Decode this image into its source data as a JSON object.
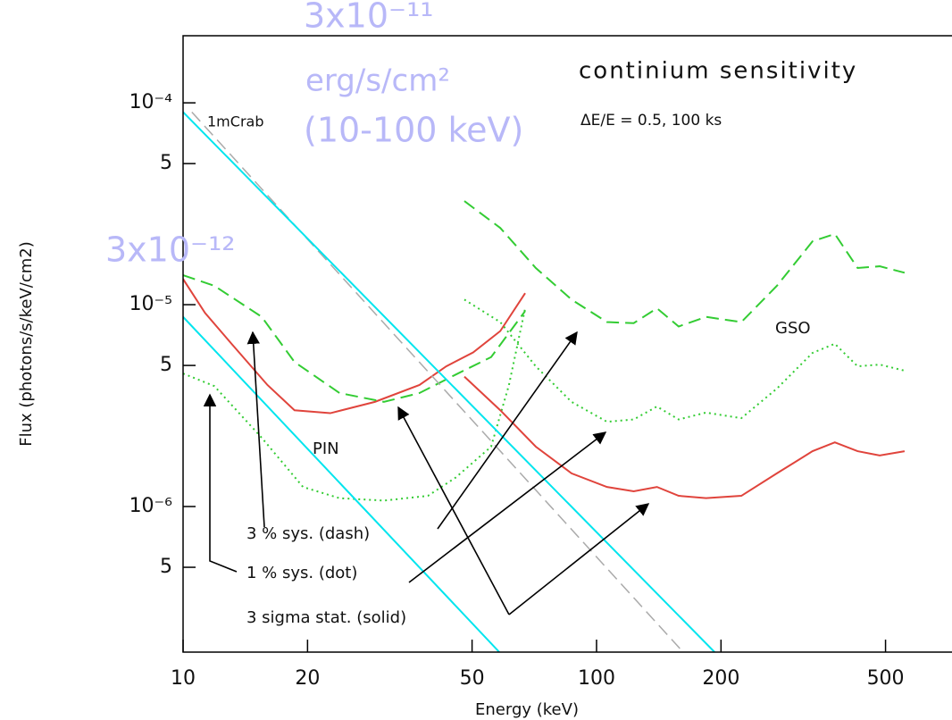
{
  "chart_data": {
    "type": "line",
    "title": "continium sensitivity",
    "subtitle": "ΔE/E = 0.5, 100 ks",
    "xlabel": "Energy (keV)",
    "ylabel": "Flux (photons/s/keV/cm2)",
    "log_x": true,
    "log_y": true,
    "xlim": [
      10,
      724
    ],
    "ylim": [
      1.9e-07,
      0.000215
    ],
    "xticks": [
      10,
      20,
      50,
      100,
      200,
      500
    ],
    "yticks": [
      {
        "value": 0.0001,
        "label": "10⁻⁴"
      },
      {
        "value": 5e-05,
        "label": "5"
      },
      {
        "value": 1e-05,
        "label": "10⁻⁵"
      },
      {
        "value": 5e-06,
        "label": "5"
      },
      {
        "value": 1e-06,
        "label": "10⁻⁶"
      },
      {
        "value": 5e-07,
        "label": "5"
      }
    ],
    "series": [
      {
        "color": "#e0443c",
        "style": "solid",
        "x": [
          10,
          11.3,
          13.1,
          16.0,
          18.6,
          22.7,
          29.1,
          37.3,
          43.3,
          50.3,
          58.5,
          67.2
        ],
        "values": [
          1.34e-05,
          9.1e-06,
          6.4e-06,
          4e-06,
          3e-06,
          2.9e-06,
          3.3e-06,
          4e-06,
          4.95e-06,
          5.8e-06,
          7.4e-06,
          1.14e-05
        ]
      },
      {
        "color": "#33cc33",
        "style": "dashed",
        "x": [
          10,
          11.9,
          15.5,
          18.6,
          23.9,
          30.6,
          37.3,
          45.6,
          55.6,
          67.2
        ],
        "values": [
          1.4e-05,
          1.24e-05,
          8.7e-06,
          5.2e-06,
          3.65e-06,
          3.3e-06,
          3.65e-06,
          4.5e-06,
          5.5e-06,
          9.3e-06
        ]
      },
      {
        "color": "#33cc33",
        "style": "dotted",
        "x": [
          10,
          11.9,
          15.5,
          19.5,
          23.9,
          30.6,
          39.1,
          45.6,
          55.6,
          61.4,
          67.2
        ],
        "values": [
          4.56e-06,
          3.95e-06,
          2.19e-06,
          1.25e-06,
          1.1e-06,
          1.07e-06,
          1.13e-06,
          1.39e-06,
          1.98e-06,
          4e-06,
          9.6e-06
        ]
      },
      {
        "color": "#e0443c",
        "style": "solid",
        "x": [
          47.9,
          58.5,
          71.3,
          87.0,
          106,
          123,
          140,
          158,
          184,
          224,
          273,
          333,
          377,
          428,
          484,
          556
        ],
        "values": [
          4.4e-06,
          3e-06,
          1.98e-06,
          1.46e-06,
          1.25e-06,
          1.19e-06,
          1.25e-06,
          1.13e-06,
          1.1e-06,
          1.13e-06,
          1.46e-06,
          1.88e-06,
          2.08e-06,
          1.88e-06,
          1.79e-06,
          1.88e-06
        ]
      },
      {
        "color": "#33cc33",
        "style": "dashed",
        "x": [
          47.9,
          58.5,
          71.3,
          87.0,
          106,
          123,
          140,
          158,
          184,
          224,
          273,
          333,
          377,
          428,
          484,
          556
        ],
        "values": [
          3.26e-05,
          2.4e-05,
          1.52e-05,
          1.06e-05,
          8.2e-06,
          8.1e-06,
          9.6e-06,
          7.8e-06,
          8.7e-06,
          8.2e-06,
          1.24e-05,
          2.06e-05,
          2.24e-05,
          1.52e-05,
          1.55e-05,
          1.44e-05
        ]
      },
      {
        "color": "#33cc33",
        "style": "dotted",
        "x": [
          47.9,
          58.5,
          71.3,
          87.0,
          106,
          123,
          140,
          158,
          184,
          224,
          273,
          333,
          377,
          428,
          484,
          556
        ],
        "values": [
          1.06e-05,
          8.2e-06,
          4.95e-06,
          3.3e-06,
          2.63e-06,
          2.7e-06,
          3.13e-06,
          2.7e-06,
          2.92e-06,
          2.74e-06,
          3.84e-06,
          5.77e-06,
          6.4e-06,
          4.95e-06,
          5.05e-06,
          4.71e-06
        ]
      },
      {
        "color": "#aaaaaa",
        "style": "dashed",
        "x": [
          10.5,
          162
        ],
        "values": [
          9e-05,
          1.9e-07
        ]
      },
      {
        "color": "#00e5ee",
        "style": "solid",
        "x": [
          10,
          193
        ],
        "values": [
          9e-05,
          1.9e-07
        ]
      },
      {
        "color": "#00e5ee",
        "style": "solid",
        "x": [
          10,
          58.2
        ],
        "values": [
          8.7e-06,
          1.9e-07
        ]
      }
    ],
    "annotations": [
      "1mCrab",
      "PIN",
      "GSO",
      "3 % sys. (dash)",
      "1 % sys. (dot)",
      "3 sigma stat. (solid)"
    ],
    "highlights": [
      "3x10⁻¹¹",
      "erg/s/cm²",
      "(10-100 keV)",
      "3x10⁻¹²"
    ]
  }
}
